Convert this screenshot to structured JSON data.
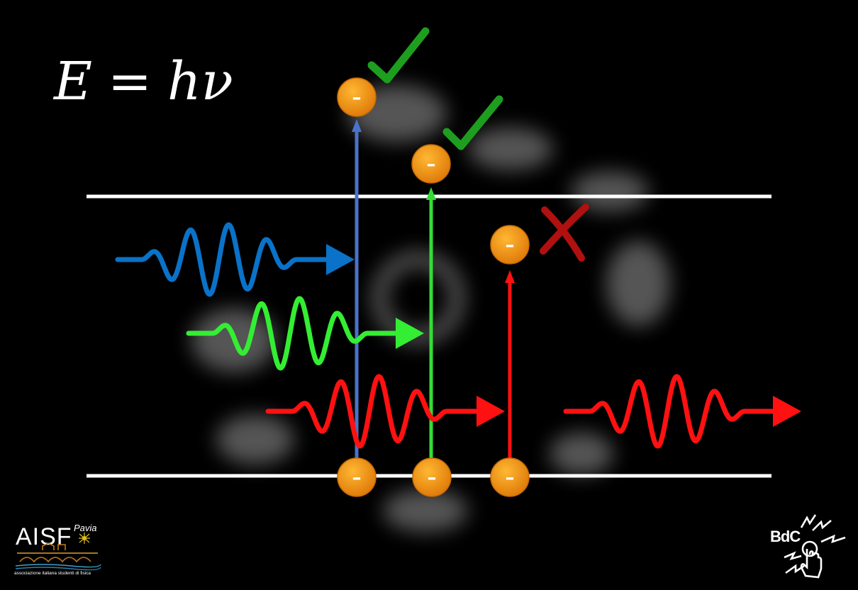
{
  "formula": {
    "lhs": "E",
    "equals": "=",
    "rhs": "hν"
  },
  "electron": {
    "sign": "–",
    "fill": "#F29A12",
    "edge": "#C46A06"
  },
  "levels": {
    "color": "#FFFFFF"
  },
  "photons": [
    {
      "name": "blue",
      "color": "#0A72C8",
      "absorbed": true
    },
    {
      "name": "green",
      "color": "#33EE33",
      "absorbed": true
    },
    {
      "name": "red",
      "color": "#FF1111",
      "absorbed": false
    }
  ],
  "transitions": [
    {
      "name": "blue",
      "color": "#4A72C8",
      "outcome": "check-icon"
    },
    {
      "name": "green",
      "color": "#33DD33",
      "outcome": "check-icon"
    },
    {
      "name": "red",
      "color": "#FF1111",
      "outcome": "cross-icon"
    }
  ],
  "marks": {
    "check_color": "#1E9E1E",
    "cross_color": "#B01010"
  },
  "logos": {
    "aisf": {
      "name": "AISF",
      "city": "Pavia",
      "tagline": "associazione italiana studenti di fisica"
    },
    "bdc": {
      "text": "BdC"
    }
  }
}
